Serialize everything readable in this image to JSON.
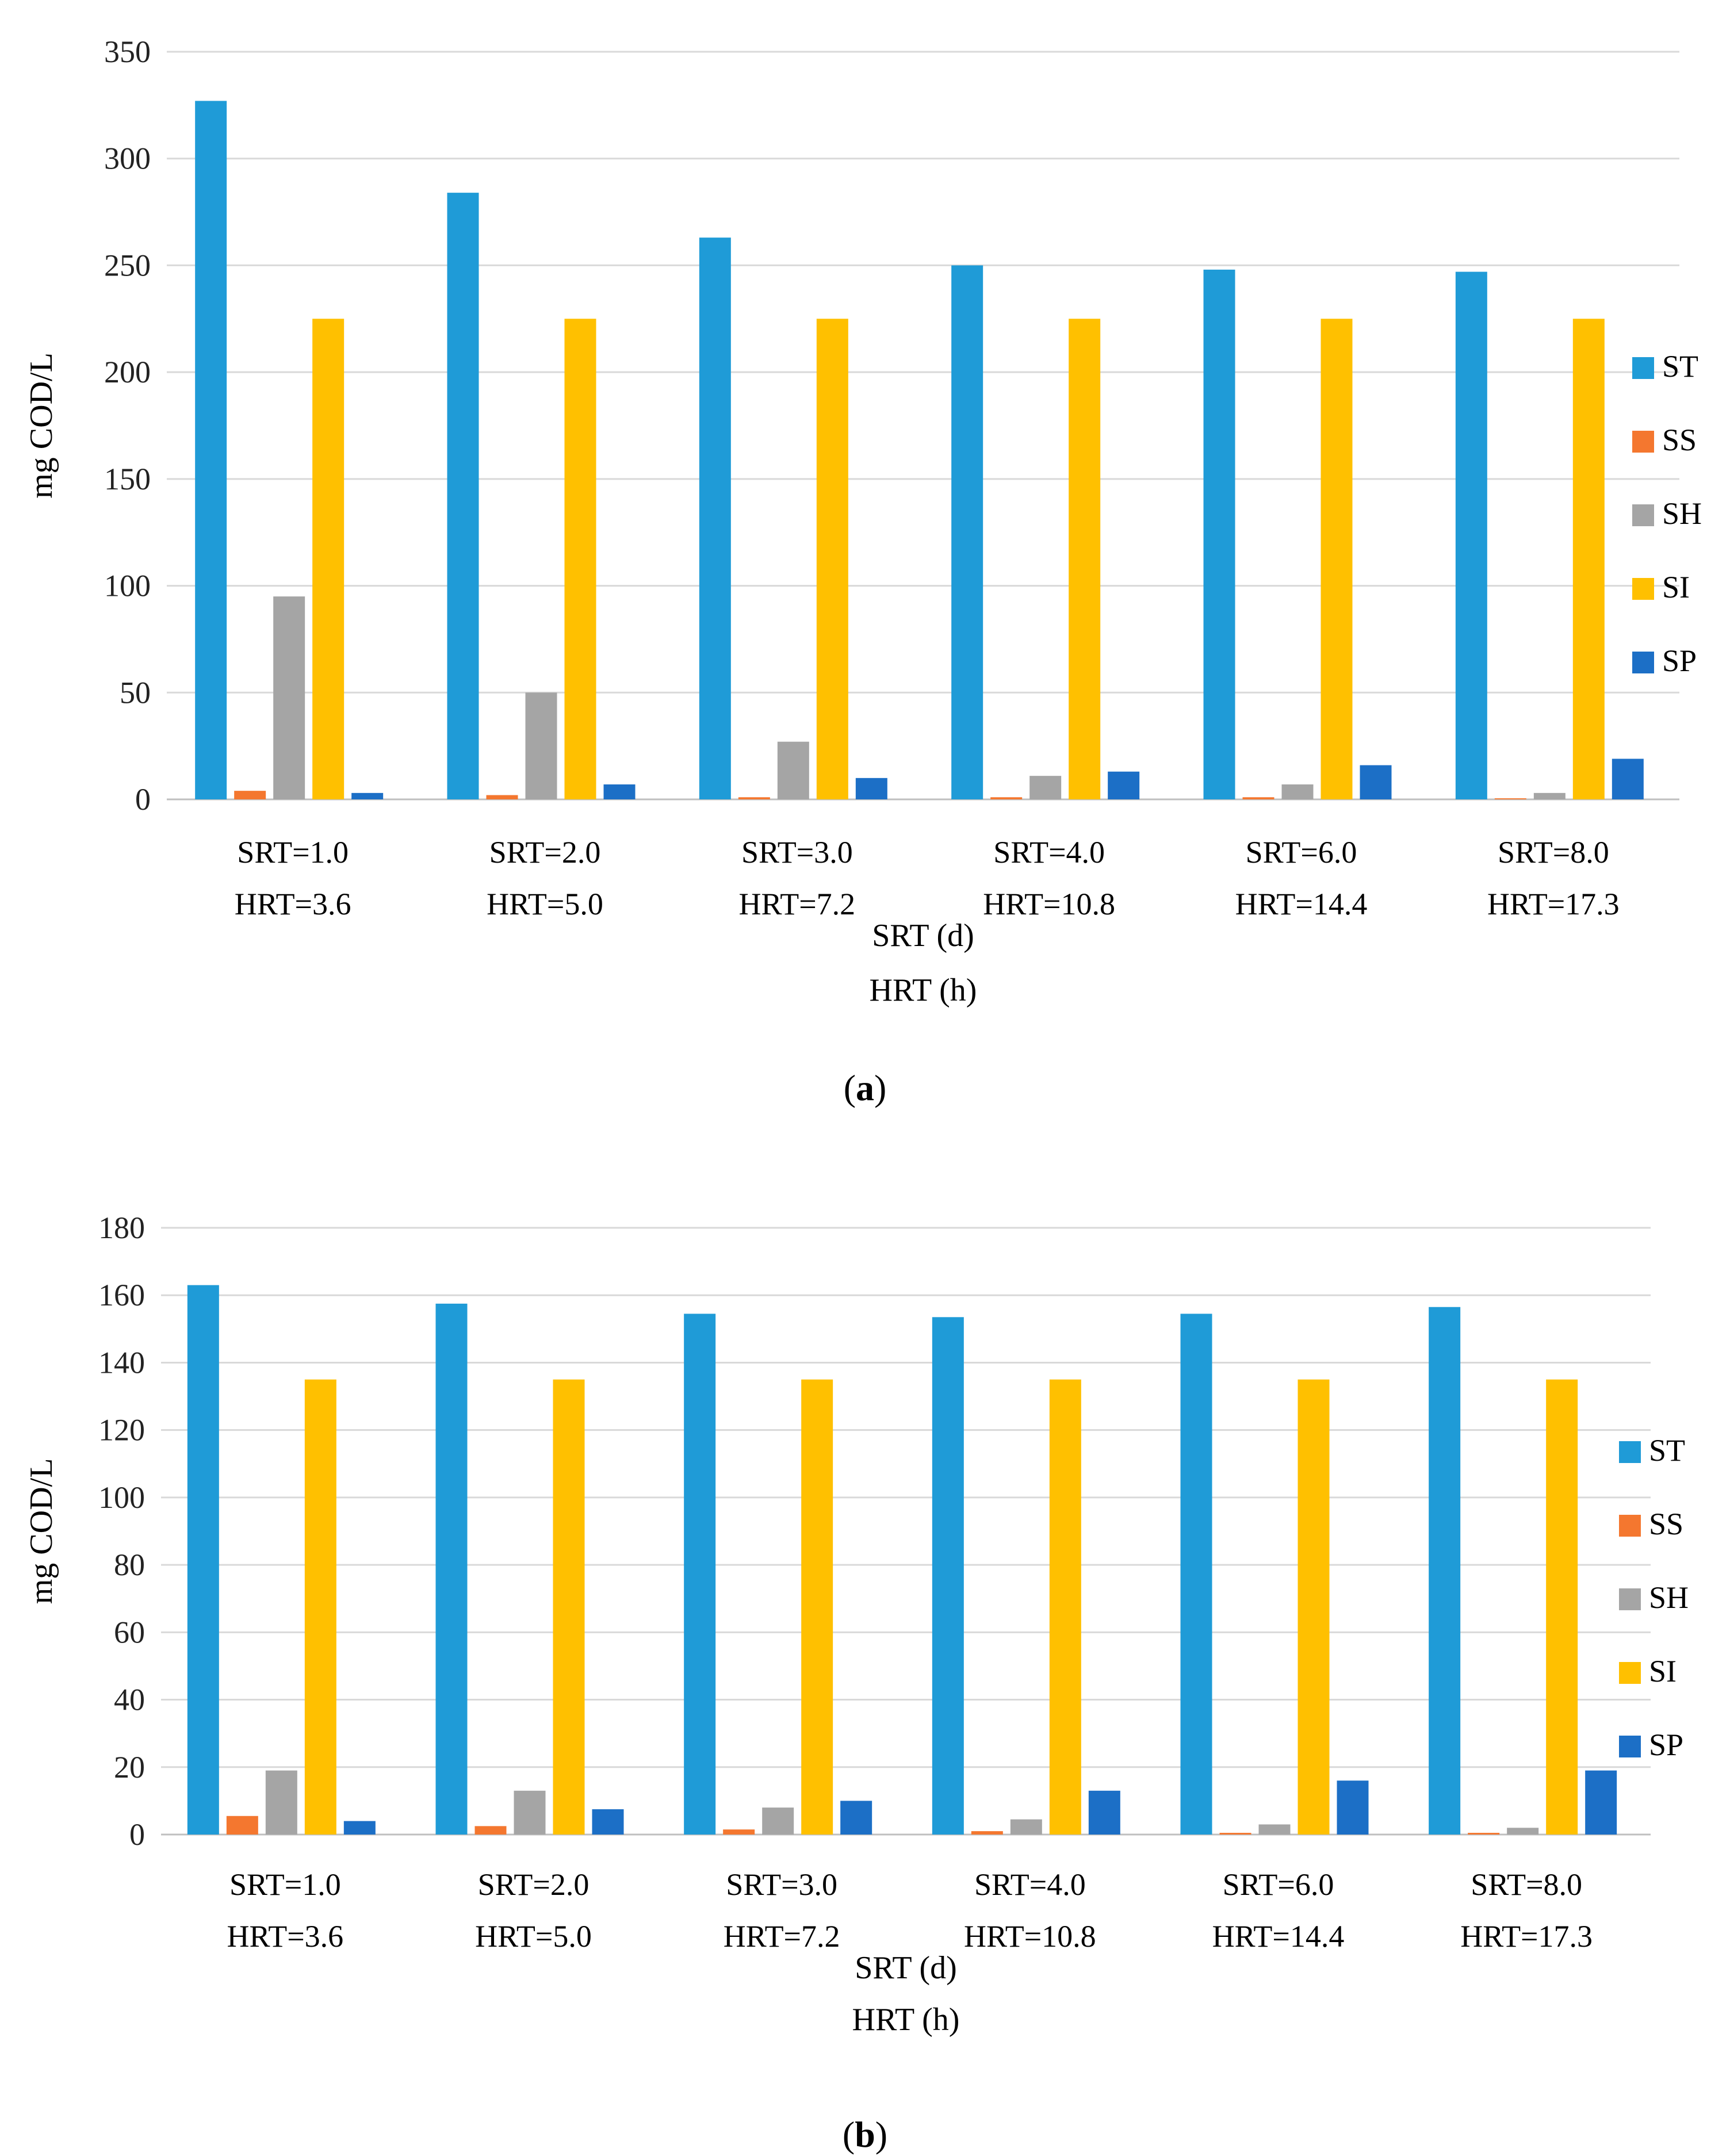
{
  "chart_data": [
    {
      "type": "bar",
      "panel": "a",
      "caption_letter": "a",
      "ylabel": "mg COD/L",
      "xlabel_line1": "SRT (d)",
      "xlabel_line2": "HRT (h)",
      "ylim": [
        0,
        350
      ],
      "yticks": [
        0,
        50,
        100,
        150,
        200,
        250,
        300,
        350
      ],
      "categories": [
        {
          "srt": "SRT=1.0",
          "hrt": "HRT=3.6"
        },
        {
          "srt": "SRT=2.0",
          "hrt": "HRT=5.0"
        },
        {
          "srt": "SRT=3.0",
          "hrt": "HRT=7.2"
        },
        {
          "srt": "SRT=4.0",
          "hrt": "HRT=10.8"
        },
        {
          "srt": "SRT=6.0",
          "hrt": "HRT=14.4"
        },
        {
          "srt": "SRT=8.0",
          "hrt": "HRT=17.3"
        }
      ],
      "series": [
        {
          "name": "ST",
          "color": "#1f9bd7",
          "values": [
            327,
            284,
            263,
            250,
            248,
            247
          ]
        },
        {
          "name": "SS",
          "color": "#f4772f",
          "values": [
            4,
            2,
            1,
            1,
            1,
            0.5
          ]
        },
        {
          "name": "SH",
          "color": "#a5a5a5",
          "values": [
            95,
            50,
            27,
            11,
            7,
            3
          ]
        },
        {
          "name": "SI",
          "color": "#ffc000",
          "values": [
            225,
            225,
            225,
            225,
            225,
            225
          ]
        },
        {
          "name": "SP",
          "color": "#1c6fc6",
          "values": [
            3,
            7,
            10,
            13,
            16,
            19
          ]
        }
      ],
      "legend": "right",
      "grid": true
    },
    {
      "type": "bar",
      "panel": "b",
      "caption_letter": "b",
      "ylabel": "mg COD/L",
      "xlabel_line1": "SRT (d)",
      "xlabel_line2": "HRT (h)",
      "ylim": [
        0,
        180
      ],
      "yticks": [
        0,
        20,
        40,
        60,
        80,
        100,
        120,
        140,
        160,
        180
      ],
      "categories": [
        {
          "srt": "SRT=1.0",
          "hrt": "HRT=3.6"
        },
        {
          "srt": "SRT=2.0",
          "hrt": "HRT=5.0"
        },
        {
          "srt": "SRT=3.0",
          "hrt": "HRT=7.2"
        },
        {
          "srt": "SRT=4.0",
          "hrt": "HRT=10.8"
        },
        {
          "srt": "SRT=6.0",
          "hrt": "HRT=14.4"
        },
        {
          "srt": "SRT=8.0",
          "hrt": "HRT=17.3"
        }
      ],
      "series": [
        {
          "name": "ST",
          "color": "#1f9bd7",
          "values": [
            163,
            157.5,
            154.5,
            153.5,
            154.5,
            156.5
          ]
        },
        {
          "name": "SS",
          "color": "#f4772f",
          "values": [
            5.5,
            2.5,
            1.5,
            1,
            0.5,
            0.5
          ]
        },
        {
          "name": "SH",
          "color": "#a5a5a5",
          "values": [
            19,
            13,
            8,
            4.5,
            3,
            2
          ]
        },
        {
          "name": "SI",
          "color": "#ffc000",
          "values": [
            135,
            135,
            135,
            135,
            135,
            135
          ]
        },
        {
          "name": "SP",
          "color": "#1c6fc6",
          "values": [
            4,
            7.5,
            10,
            13,
            16,
            19
          ]
        }
      ],
      "legend": "right",
      "grid": true
    }
  ]
}
